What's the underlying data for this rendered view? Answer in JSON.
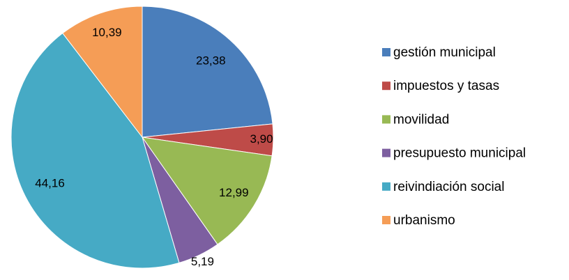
{
  "chart_data": {
    "type": "pie",
    "categories": [
      "gestión municipal",
      "impuestos y tasas",
      "movilidad",
      "presupuesto municipal",
      "reivindiación social",
      "urbanismo"
    ],
    "values": [
      23.38,
      3.9,
      12.99,
      5.19,
      44.16,
      10.39
    ],
    "value_labels": [
      "23,38",
      "3,90",
      "12,99",
      "5,19",
      "44,16",
      "10,39"
    ],
    "colors": [
      "#4a7ebb",
      "#be4b48",
      "#98b954",
      "#7d5fa0",
      "#46aac5",
      "#f59d56"
    ],
    "legend": "right"
  }
}
